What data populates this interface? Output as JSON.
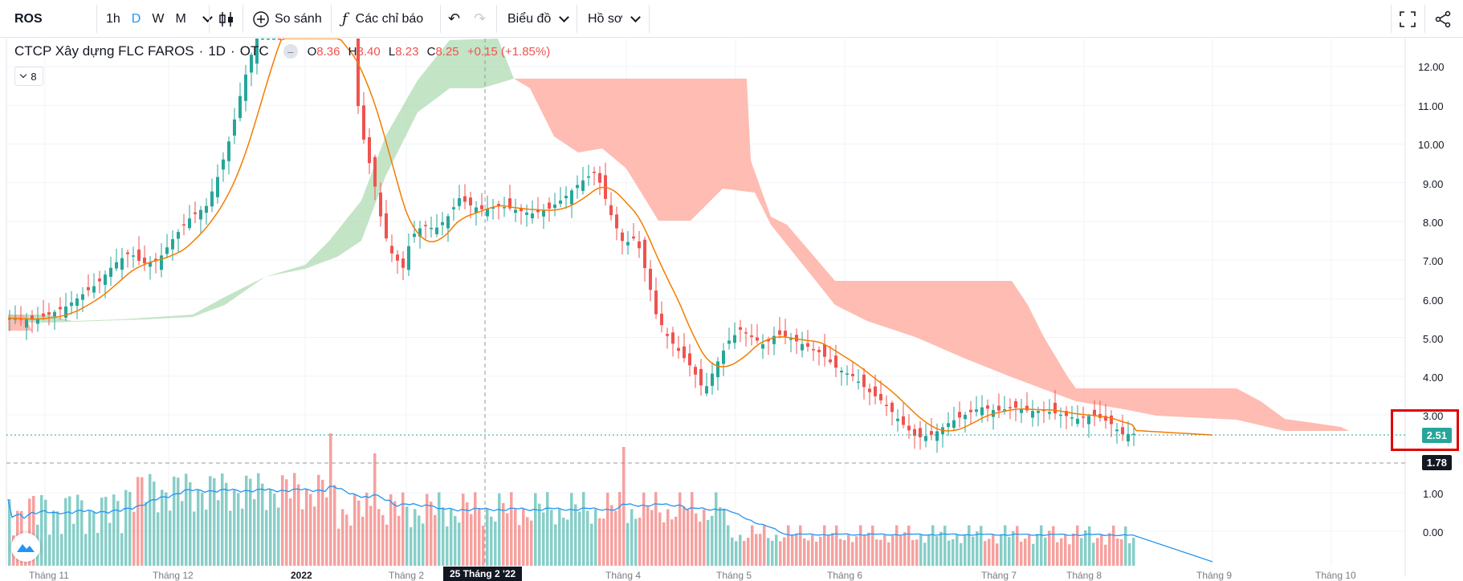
{
  "toolbar": {
    "symbol": "ROS",
    "intervals": [
      "1h",
      "D",
      "W",
      "M"
    ],
    "active_interval": "D",
    "compare_label": "So sánh",
    "indicators_label": "Các chỉ báo",
    "chart_label": "Biểu đồ",
    "profile_label": "Hồ sơ"
  },
  "legend": {
    "name": "CTCP Xây dựng FLC FAROS",
    "interval": "1D",
    "exchange": "OTC",
    "open_prefix": "O",
    "open": "8.36",
    "high_prefix": "H",
    "high": "8.40",
    "low_prefix": "L",
    "low": "8.23",
    "close_prefix": "C",
    "close": "8.25",
    "change": "+0.15 (+1.85%)",
    "collapse_count": "8"
  },
  "price_axis": {
    "ticks": [
      "12.00",
      "11.00",
      "10.00",
      "9.00",
      "8.00",
      "7.00",
      "6.00",
      "5.00",
      "4.00",
      "3.00",
      "1.00",
      "0.00"
    ],
    "last_price": "2.51",
    "crosshair_price": "1.78"
  },
  "time_axis": {
    "labels": [
      "Tháng 11",
      "Tháng 12",
      "2022",
      "Tháng 2",
      "Tháng 4",
      "Tháng 5",
      "Tháng 6",
      "Tháng 7",
      "Tháng 8",
      "Tháng 9",
      "Tháng 10"
    ],
    "crosshair_label": "25 Tháng 2 '22"
  },
  "colors": {
    "up": "#26a69a",
    "down": "#ef5350",
    "ma": "#f57c00",
    "cloud_bull": "#a5d6a7",
    "cloud_bear": "#ffab9f",
    "volume_ma": "#2196f3",
    "last_price_bg": "#26a69a",
    "highlight": "#e00000"
  },
  "chart_data": {
    "type": "line",
    "title": "CTCP Xây dựng FLC FAROS",
    "series": [
      {
        "name": "ROS",
        "x": [
          "Tháng 11",
          "Tháng 12",
          "2022",
          "Tháng 2",
          "Tháng 4",
          "Tháng 5",
          "Tháng 6",
          "Tháng 7",
          "Tháng 8"
        ],
        "values": [
          5.5,
          7.0,
          14.0,
          8.2,
          9.2,
          5.0,
          4.2,
          3.1,
          2.51
        ]
      }
    ],
    "ylim": [
      0,
      12.5
    ],
    "grid": true,
    "legend": "top-left"
  }
}
